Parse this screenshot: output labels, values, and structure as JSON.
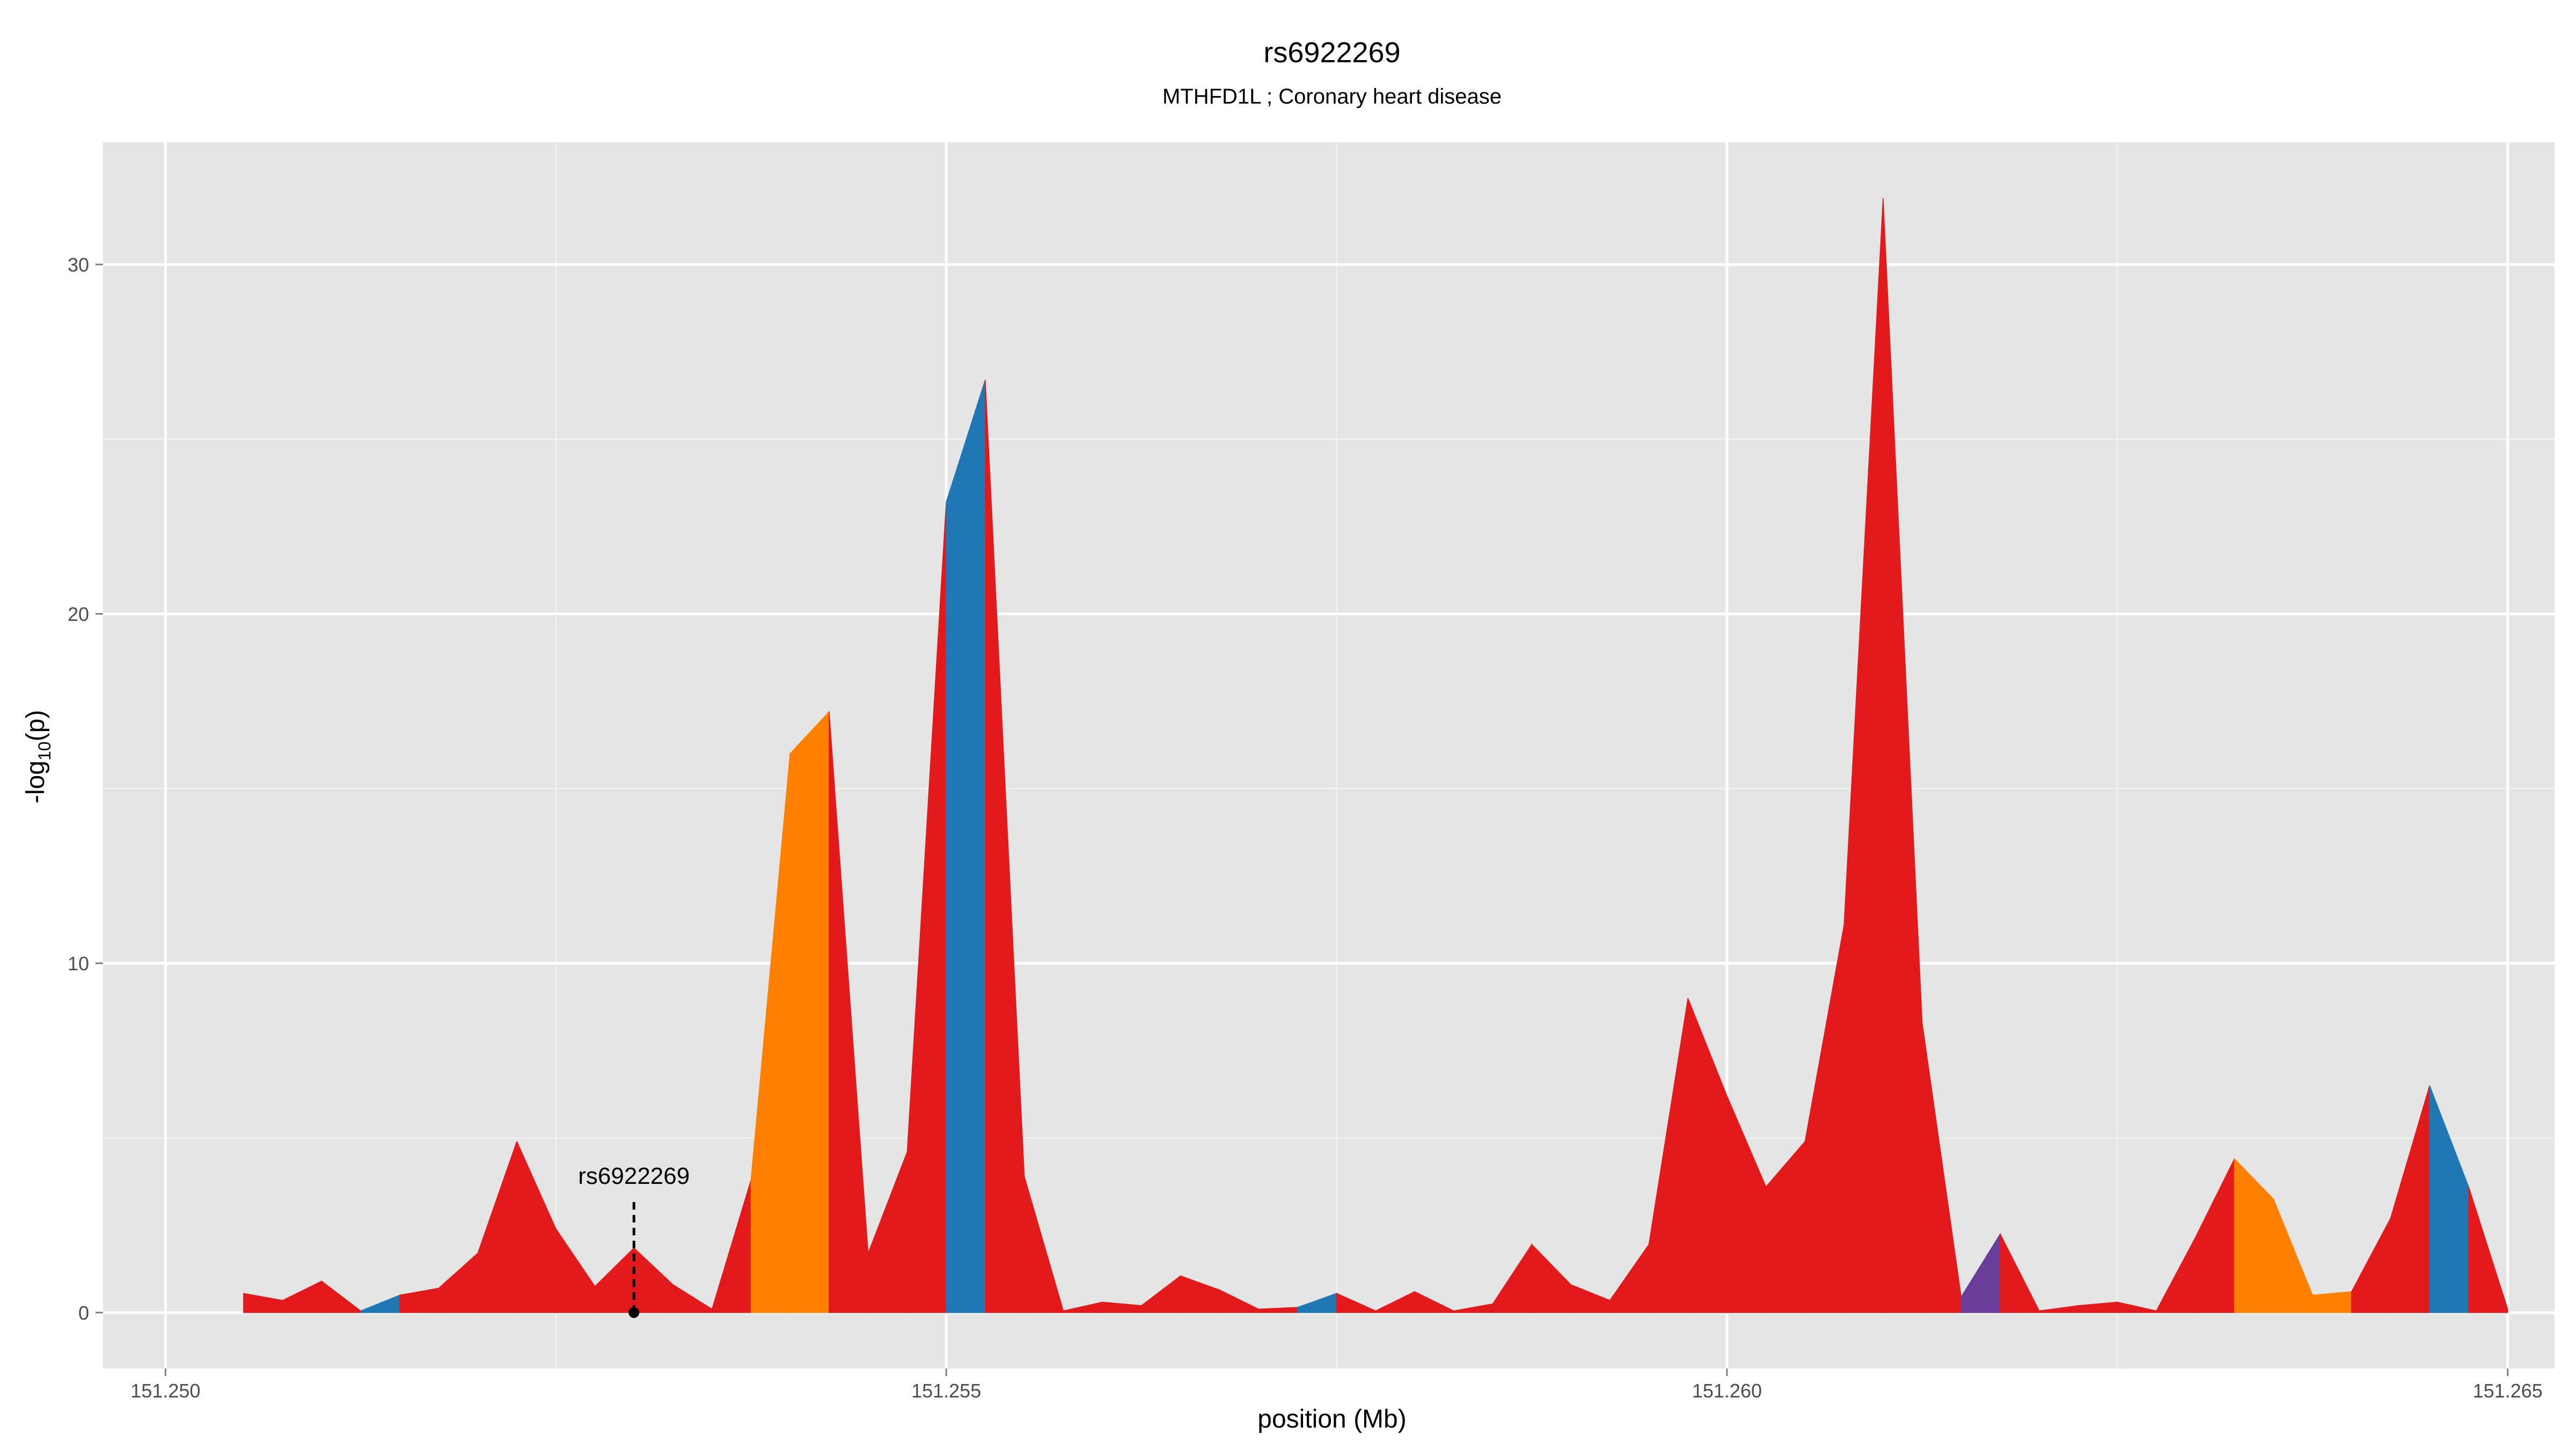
{
  "chart_data": {
    "type": "area",
    "title": "rs6922269",
    "subtitle": "MTHFD1L ; Coronary heart disease",
    "xlabel": "position (Mb)",
    "ylabel_base": "-log",
    "ylabel_sub": "10",
    "ylabel_tail": "(p)",
    "xlim": [
      151.2496,
      151.2653
    ],
    "ylim": [
      -1.6,
      33.5
    ],
    "xticks": [
      151.25,
      151.255,
      151.26,
      151.265
    ],
    "xtick_labels": [
      "151.250",
      "151.255",
      "151.260",
      "151.265"
    ],
    "yticks": [
      0,
      10,
      20,
      30
    ],
    "ytick_labels": [
      "0",
      "10",
      "20",
      "30"
    ],
    "grid": true,
    "colors": {
      "panel": "#e5e5e5",
      "grid_major": "#ffffff",
      "grid_minor": "#f0f0f0",
      "red": "#e31a1c",
      "orange": "#ff7f00",
      "blue": "#1f78b4",
      "purple": "#6a3d9a"
    },
    "annotation": {
      "label": "rs6922269",
      "x": 151.253,
      "y": 0
    },
    "points": [
      [
        151.2505,
        0.55,
        "red"
      ],
      [
        151.25075,
        0.35,
        "red"
      ],
      [
        151.251,
        0.9,
        "red"
      ],
      [
        151.25125,
        0.05,
        "blue"
      ],
      [
        151.2515,
        0.5,
        "red"
      ],
      [
        151.25175,
        0.7,
        "red"
      ],
      [
        151.252,
        1.7,
        "red"
      ],
      [
        151.25225,
        4.9,
        "red"
      ],
      [
        151.2525,
        2.4,
        "red"
      ],
      [
        151.25275,
        0.75,
        "red"
      ],
      [
        151.253,
        1.85,
        "red"
      ],
      [
        151.25325,
        0.8,
        "red"
      ],
      [
        151.2535,
        0.1,
        "red"
      ],
      [
        151.25375,
        3.8,
        "orange"
      ],
      [
        151.254,
        16.0,
        "orange"
      ],
      [
        151.25425,
        17.2,
        "red"
      ],
      [
        151.2545,
        1.7,
        "red"
      ],
      [
        151.25475,
        4.6,
        "red"
      ],
      [
        151.255,
        23.2,
        "blue"
      ],
      [
        151.25525,
        26.7,
        "red"
      ],
      [
        151.2555,
        3.9,
        "red"
      ],
      [
        151.25575,
        0.05,
        "red"
      ],
      [
        151.256,
        0.3,
        "red"
      ],
      [
        151.25625,
        0.2,
        "red"
      ],
      [
        151.2565,
        1.05,
        "red"
      ],
      [
        151.25675,
        0.65,
        "red"
      ],
      [
        151.257,
        0.1,
        "red"
      ],
      [
        151.25725,
        0.15,
        "blue"
      ],
      [
        151.2575,
        0.55,
        "red"
      ],
      [
        151.25775,
        0.05,
        "red"
      ],
      [
        151.258,
        0.6,
        "red"
      ],
      [
        151.25825,
        0.05,
        "red"
      ],
      [
        151.2585,
        0.25,
        "red"
      ],
      [
        151.25875,
        1.95,
        "red"
      ],
      [
        151.259,
        0.8,
        "red"
      ],
      [
        151.25925,
        0.35,
        "red"
      ],
      [
        151.2595,
        1.95,
        "red"
      ],
      [
        151.25975,
        9.0,
        "red"
      ],
      [
        151.26,
        6.2,
        "red"
      ],
      [
        151.26025,
        3.6,
        "red"
      ],
      [
        151.2605,
        4.9,
        "red"
      ],
      [
        151.26075,
        11.1,
        "red"
      ],
      [
        151.261,
        31.9,
        "red"
      ],
      [
        151.26125,
        8.3,
        "red"
      ],
      [
        151.2615,
        0.45,
        "purple"
      ],
      [
        151.26175,
        2.25,
        "red"
      ],
      [
        151.262,
        0.05,
        "red"
      ],
      [
        151.26225,
        0.2,
        "red"
      ],
      [
        151.2625,
        0.3,
        "red"
      ],
      [
        151.26275,
        0.05,
        "red"
      ],
      [
        151.263,
        2.15,
        "red"
      ],
      [
        151.26325,
        4.4,
        "orange"
      ],
      [
        151.2635,
        3.25,
        "orange"
      ],
      [
        151.26375,
        0.5,
        "orange"
      ],
      [
        151.264,
        0.6,
        "red"
      ],
      [
        151.26425,
        2.7,
        "red"
      ],
      [
        151.2645,
        6.5,
        "blue"
      ],
      [
        151.26475,
        3.6,
        "red"
      ],
      [
        151.265,
        0.1,
        "red"
      ]
    ]
  }
}
